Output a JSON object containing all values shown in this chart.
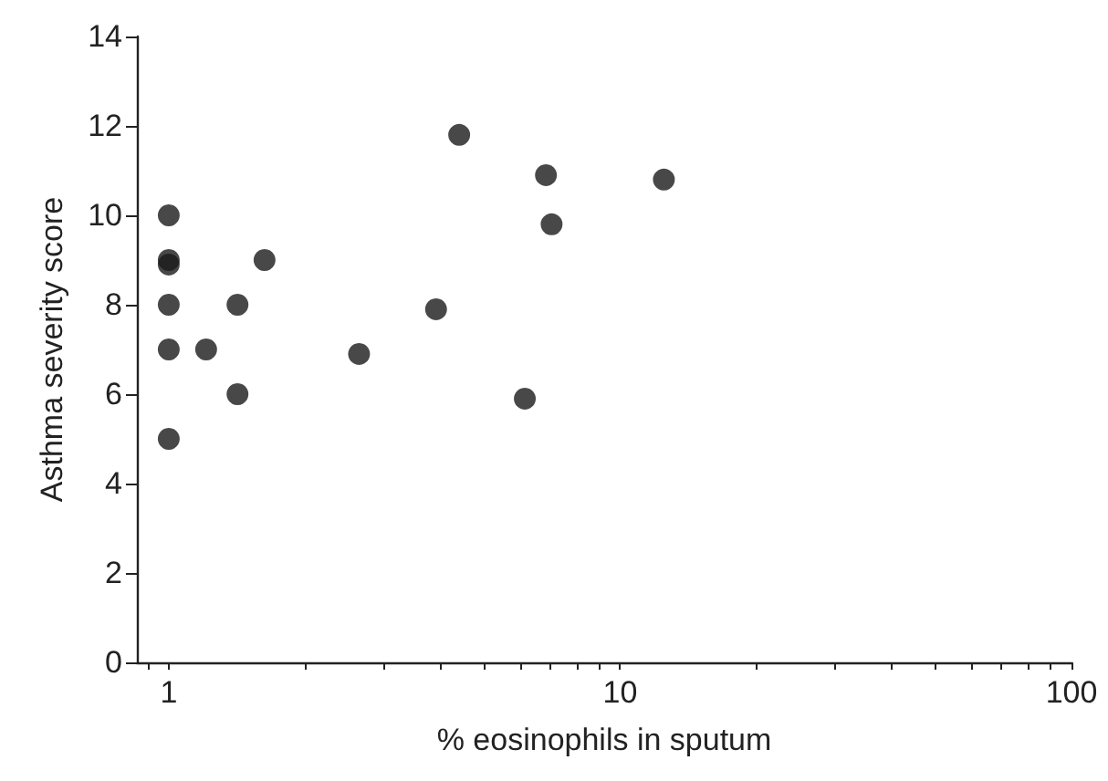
{
  "chart_data": {
    "type": "scatter",
    "xlabel": "% eosinophils in sputum",
    "ylabel": "Asthma severity score",
    "log": "x",
    "grid": false,
    "marker": "circle",
    "x": [
      1,
      1,
      1,
      1,
      1,
      1,
      1.21,
      1.42,
      1.42,
      1.63,
      2.64,
      3.91,
      4.4,
      6.15,
      6.85,
      7.05,
      12.5
    ],
    "series": [
      {
        "color": "#1a1a1a",
        "values": [
          10,
          9,
          8.9,
          8,
          7,
          5,
          7,
          8,
          6,
          9,
          6.9,
          7.9,
          11.8,
          5.9,
          10.9,
          9.8,
          10.8
        ]
      }
    ],
    "xlim": [
      0.85,
      100
    ],
    "xticks": [
      {
        "value": 0.9,
        "label": null
      },
      1,
      {
        "value": 2,
        "label": null
      },
      {
        "value": 3,
        "label": null
      },
      {
        "value": 4,
        "label": null
      },
      {
        "value": 5,
        "label": null
      },
      {
        "value": 6,
        "label": null
      },
      {
        "value": 7,
        "label": null
      },
      {
        "value": 8,
        "label": null
      },
      {
        "value": 9,
        "label": null
      },
      10,
      {
        "value": 20,
        "label": null
      },
      {
        "value": 30,
        "label": null
      },
      {
        "value": 40,
        "label": null
      },
      {
        "value": 50,
        "label": null
      },
      {
        "value": 60,
        "label": null
      },
      {
        "value": 70,
        "label": null
      },
      {
        "value": 80,
        "label": null
      },
      {
        "value": 90,
        "label": null
      },
      100
    ],
    "ylim": [
      0,
      14
    ],
    "yticks": [
      0,
      2,
      4,
      6,
      8,
      10,
      12,
      14
    ]
  }
}
